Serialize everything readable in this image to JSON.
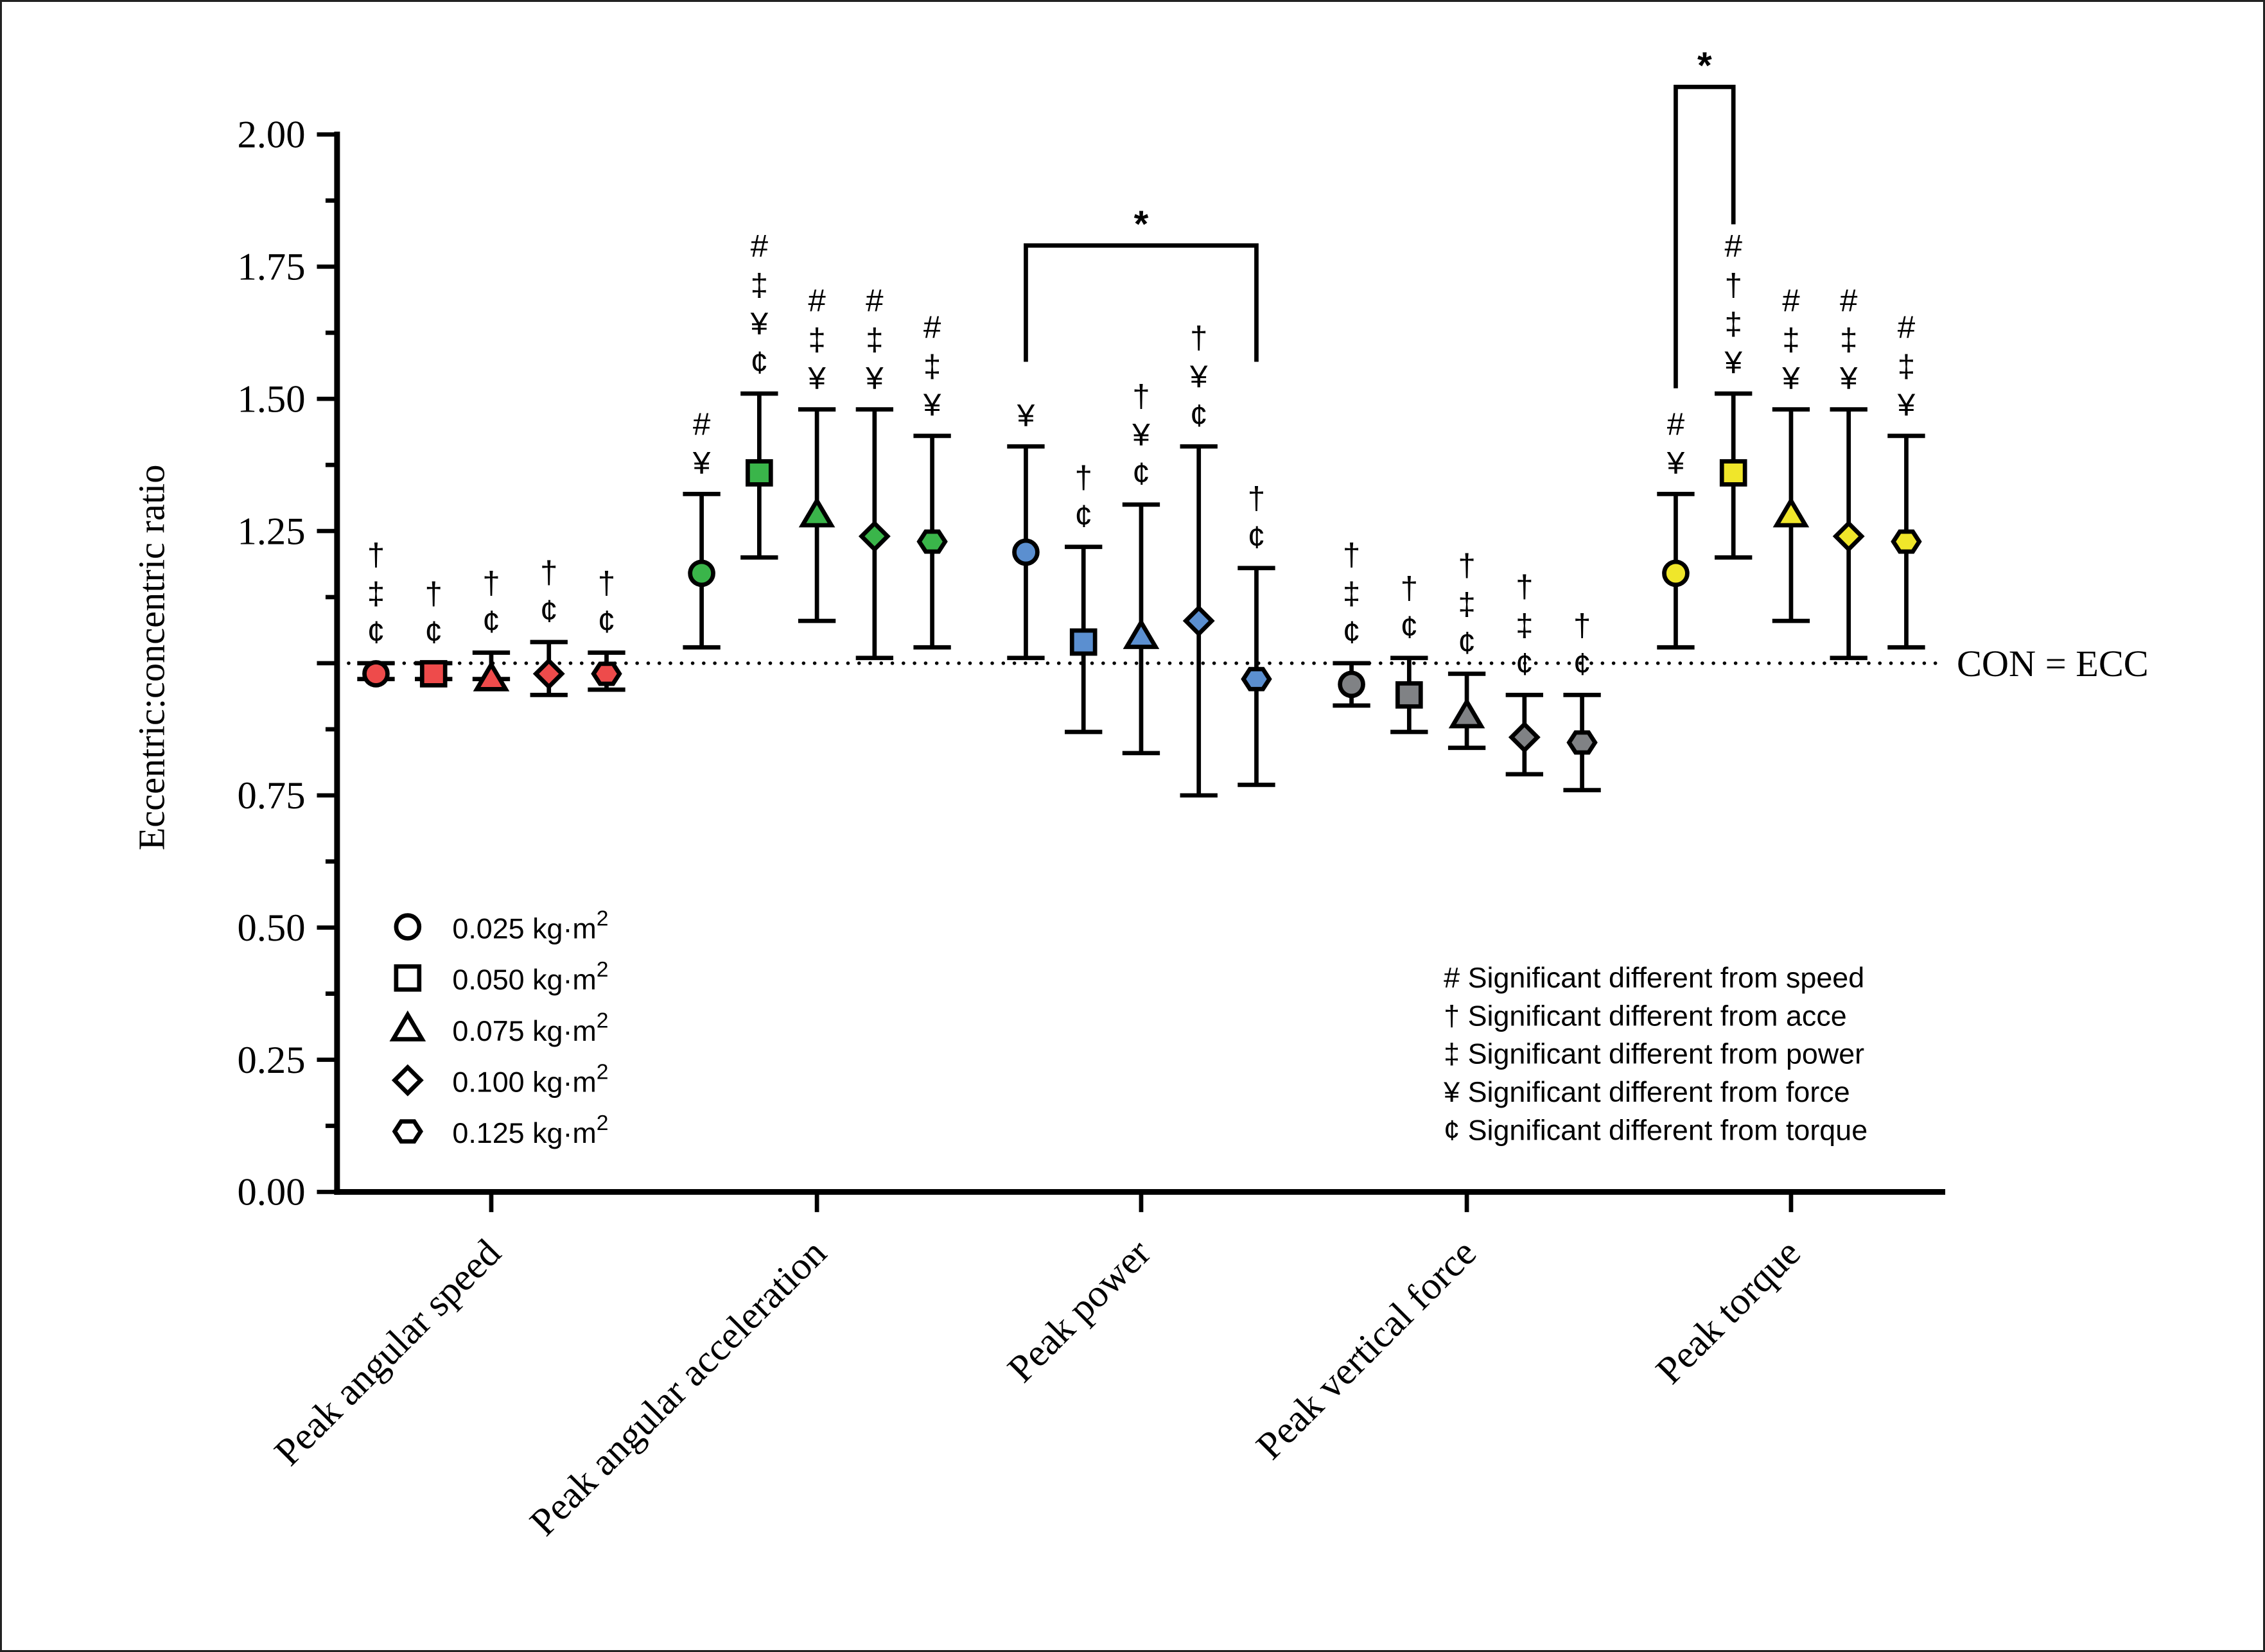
{
  "chart_data": {
    "type": "scatter",
    "subtype": "grouped-point-with-error-bars",
    "title": "",
    "ylabel": "Eccentric:concentric ratio",
    "xlabel": "",
    "ylim": [
      0,
      2.0
    ],
    "yticks": [
      "0.00",
      "0.25",
      "0.50",
      "0.75",
      "1.25",
      "1.50",
      "1.75",
      "2.00"
    ],
    "ytick_values": [
      0,
      0.25,
      0.5,
      0.75,
      1.25,
      1.5,
      1.75,
      2.0
    ],
    "reference_line": {
      "value": 1.0,
      "label": "CON = ECC",
      "style": "dotted"
    },
    "categories": [
      "Peak angular speed",
      "Peak angular acceleration",
      "Peak power",
      "Peak vertical force",
      "Peak torque"
    ],
    "category_colors": [
      "#ee4b4b",
      "#3ab54a",
      "#5b8fd0",
      "#808285",
      "#f0e62a"
    ],
    "series": [
      {
        "name": "0.025 kg·m²",
        "marker": "circle",
        "values": [
          0.98,
          1.17,
          1.21,
          0.96,
          1.17
        ],
        "err_high": [
          1.0,
          1.32,
          1.41,
          1.0,
          1.32
        ],
        "err_low": [
          0.97,
          1.03,
          1.01,
          0.92,
          1.03
        ]
      },
      {
        "name": "0.050 kg·m²",
        "marker": "square",
        "values": [
          0.98,
          1.36,
          1.04,
          0.94,
          1.36
        ],
        "err_high": [
          1.0,
          1.51,
          1.22,
          1.01,
          1.51
        ],
        "err_low": [
          0.97,
          1.2,
          0.87,
          0.87,
          1.2
        ]
      },
      {
        "name": "0.075 kg·m²",
        "marker": "triangle",
        "values": [
          0.97,
          1.28,
          1.05,
          0.9,
          1.28
        ],
        "err_high": [
          1.02,
          1.48,
          1.3,
          0.98,
          1.48
        ],
        "err_low": [
          0.97,
          1.08,
          0.83,
          0.84,
          1.08
        ]
      },
      {
        "name": "0.100 kg·m²",
        "marker": "diamond",
        "values": [
          0.98,
          1.24,
          1.08,
          0.86,
          1.24
        ],
        "err_high": [
          1.04,
          1.48,
          1.41,
          0.94,
          1.48
        ],
        "err_low": [
          0.94,
          1.01,
          0.75,
          0.79,
          1.01
        ]
      },
      {
        "name": "0.125 kg·m²",
        "marker": "hexagon",
        "values": [
          0.98,
          1.23,
          0.97,
          0.85,
          1.23
        ],
        "err_high": [
          1.02,
          1.43,
          1.18,
          0.94,
          1.43
        ],
        "err_low": [
          0.95,
          1.03,
          0.77,
          0.76,
          1.03
        ]
      }
    ],
    "significance_marks": [
      [
        [
          "†",
          "‡",
          "¢"
        ],
        [
          "†",
          "¢"
        ],
        [
          "†",
          "¢"
        ],
        [
          "†",
          "¢"
        ],
        [
          "†",
          "¢"
        ]
      ],
      [
        [
          "#",
          "¥"
        ],
        [
          "#",
          "‡",
          "¥",
          "¢"
        ],
        [
          "#",
          "‡",
          "¥"
        ],
        [
          "#",
          "‡",
          "¥"
        ],
        [
          "#",
          "‡",
          "¥"
        ]
      ],
      [
        [
          "¥"
        ],
        [
          "†",
          "¢"
        ],
        [
          "†",
          "¥",
          "¢"
        ],
        [
          "†",
          "¥",
          "¢"
        ],
        [
          "†",
          "¢"
        ]
      ],
      [
        [
          "†",
          "‡",
          "¢"
        ],
        [
          "†",
          "¢"
        ],
        [
          "†",
          "‡",
          "¢"
        ],
        [
          "†",
          "‡",
          "¢"
        ],
        [
          "†",
          "¢"
        ]
      ],
      [
        [
          "#",
          "¥"
        ],
        [
          "#",
          "†",
          "‡",
          "¥"
        ],
        [
          "#",
          "‡",
          "¥"
        ],
        [
          "#",
          "‡",
          "¥"
        ],
        [
          "#",
          "‡",
          "¥"
        ]
      ]
    ],
    "brackets": [
      {
        "category": 2,
        "from_series": 0,
        "to_series": 4,
        "label": "*"
      },
      {
        "category": 4,
        "from_series": 0,
        "to_series": 1,
        "label": "*"
      }
    ],
    "legend": {
      "position": "bottom-left",
      "entries": [
        "0.025 kg·m",
        "0.050 kg·m",
        "0.075 kg·m",
        "0.100 kg·m",
        "0.125 kg·m"
      ],
      "superscript": "2"
    },
    "significance_legend": {
      "position": "bottom-right",
      "entries": [
        "# Significant different from speed",
        "† Significant different from acce",
        "‡ Significant different from power",
        "¥ Significant different from force",
        "¢ Significant different from torque"
      ]
    },
    "grid": false
  }
}
